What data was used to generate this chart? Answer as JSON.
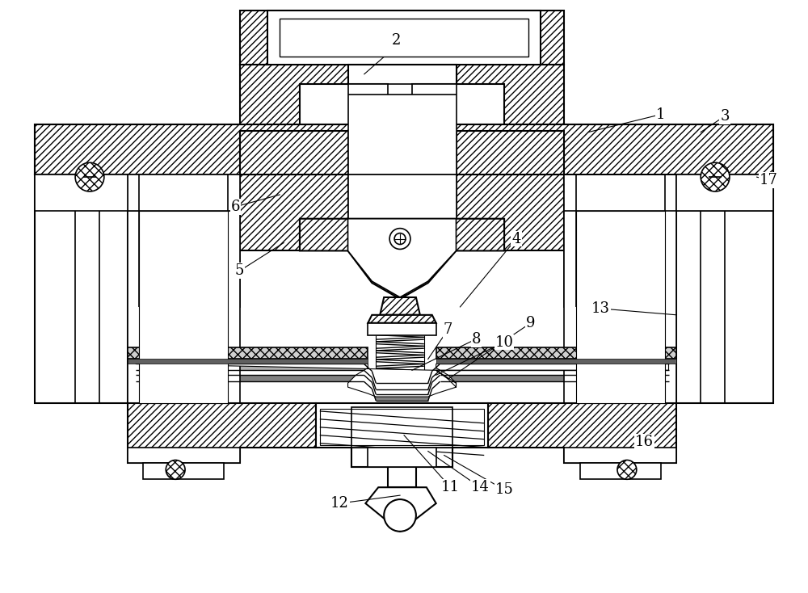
{
  "fig_width": 10.0,
  "fig_height": 7.34,
  "dpi": 100,
  "bg_color": "#ffffff",
  "line_color": "#000000"
}
